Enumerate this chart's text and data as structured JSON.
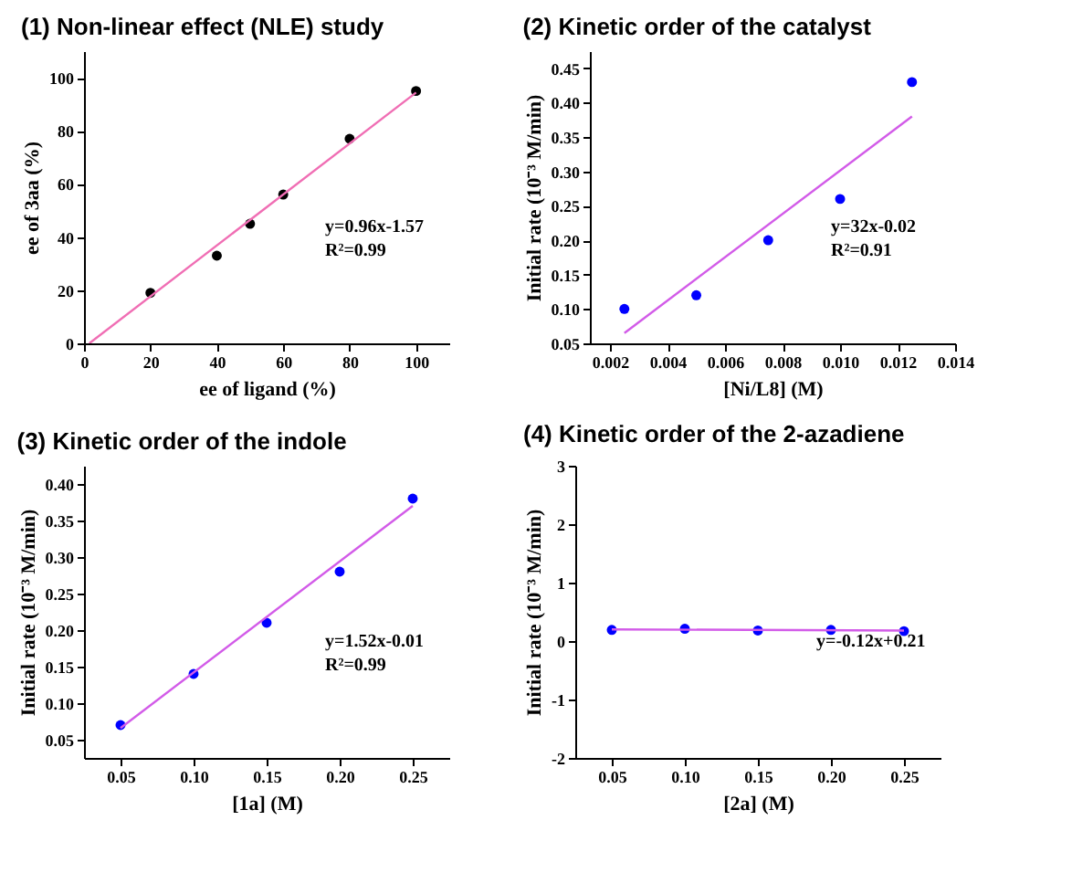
{
  "chart_data": [
    {
      "type": "scatter",
      "title": "(1) Non-linear effect (NLE) study",
      "xlabel": "ee of ligand (%)",
      "ylabel": "ee of 3aa (%)",
      "grid": false,
      "xlim": [
        0,
        110
      ],
      "ylim": [
        0,
        110
      ],
      "xticks": [
        0,
        20,
        40,
        60,
        80,
        100
      ],
      "yticks": [
        0,
        20,
        40,
        60,
        80,
        100
      ],
      "series": [
        {
          "type": "scatter",
          "color": "#000000",
          "marker": "circle",
          "x": [
            20,
            40,
            50,
            60,
            80,
            100
          ],
          "values": [
            19,
            33,
            45,
            56,
            77,
            95
          ]
        },
        {
          "type": "line",
          "color": "#f06eb4",
          "x": [
            1.6,
            100
          ],
          "values": [
            0,
            94.4
          ]
        }
      ],
      "annotations": [
        "y=0.96x-1.57",
        "R²=0.99"
      ]
    },
    {
      "type": "scatter",
      "title": "(2) Kinetic order of the catalyst",
      "xlabel": "[Ni/L8] (M)",
      "ylabel": "Initial rate (10⁻³ M/min)",
      "grid": false,
      "xlim": [
        0.0013,
        0.014
      ],
      "ylim": [
        0.05,
        0.475
      ],
      "xticks": [
        0.002,
        0.004,
        0.006,
        0.008,
        {
          "value": 0.01,
          "label": "0.010"
        },
        0.012,
        0.014
      ],
      "yticks": [
        0.05,
        {
          "value": 0.1,
          "label": "0.10"
        },
        0.15,
        {
          "value": 0.2,
          "label": "0.20"
        },
        0.25,
        {
          "value": 0.3,
          "label": "0.30"
        },
        0.35,
        {
          "value": 0.4,
          "label": "0.40"
        },
        0.45
      ],
      "series": [
        {
          "type": "scatter",
          "color": "#0000ff",
          "marker": "circle",
          "x": [
            0.0025,
            0.005,
            0.0075,
            0.01,
            0.0125
          ],
          "values": [
            0.1,
            0.12,
            0.2,
            0.26,
            0.43
          ]
        },
        {
          "type": "line",
          "color": "#d25be8",
          "x": [
            0.0025,
            0.0125
          ],
          "values": [
            0.065,
            0.38
          ]
        }
      ],
      "annotations": [
        "y=32x-0.02",
        "R²=0.91"
      ]
    },
    {
      "type": "scatter",
      "title": "(3) Kinetic order of the indole",
      "xlabel": "[1a] (M)",
      "ylabel": "Initial rate (10⁻³ M/min)",
      "grid": false,
      "xlim": [
        0.025,
        0.275
      ],
      "ylim": [
        0.025,
        0.425
      ],
      "xticks": [
        0.05,
        {
          "value": 0.1,
          "label": "0.10"
        },
        0.15,
        {
          "value": 0.2,
          "label": "0.20"
        },
        0.25
      ],
      "yticks": [
        0.05,
        {
          "value": 0.1,
          "label": "0.10"
        },
        0.15,
        {
          "value": 0.2,
          "label": "0.20"
        },
        0.25,
        {
          "value": 0.3,
          "label": "0.30"
        },
        0.35,
        {
          "value": 0.4,
          "label": "0.40"
        }
      ],
      "series": [
        {
          "type": "scatter",
          "color": "#0000ff",
          "marker": "circle",
          "x": [
            0.05,
            0.1,
            0.15,
            0.2,
            0.25
          ],
          "values": [
            0.07,
            0.14,
            0.21,
            0.28,
            0.38
          ]
        },
        {
          "type": "line",
          "color": "#d25be8",
          "x": [
            0.05,
            0.25
          ],
          "values": [
            0.066,
            0.37
          ]
        }
      ],
      "annotations": [
        "y=1.52x-0.01",
        "R²=0.99"
      ]
    },
    {
      "type": "scatter",
      "title": "(4) Kinetic order of the 2-azadiene",
      "xlabel": "[2a] (M)",
      "ylabel": "Initial rate (10⁻³ M/min)",
      "grid": false,
      "xlim": [
        0.025,
        0.275
      ],
      "ylim": [
        -2,
        3
      ],
      "xticks": [
        0.05,
        {
          "value": 0.1,
          "label": "0.10"
        },
        0.15,
        {
          "value": 0.2,
          "label": "0.20"
        },
        0.25
      ],
      "yticks": [
        -2,
        -1,
        0,
        1,
        2,
        3
      ],
      "series": [
        {
          "type": "scatter",
          "color": "#0000ff",
          "marker": "circle",
          "x": [
            0.05,
            0.1,
            0.15,
            0.2,
            0.25
          ],
          "values": [
            0.19,
            0.21,
            0.18,
            0.19,
            0.17
          ]
        },
        {
          "type": "line",
          "color": "#d25be8",
          "x": [
            0.05,
            0.25
          ],
          "values": [
            0.2,
            0.18
          ]
        }
      ],
      "annotations": [
        "y=-0.12x+0.21"
      ]
    }
  ]
}
